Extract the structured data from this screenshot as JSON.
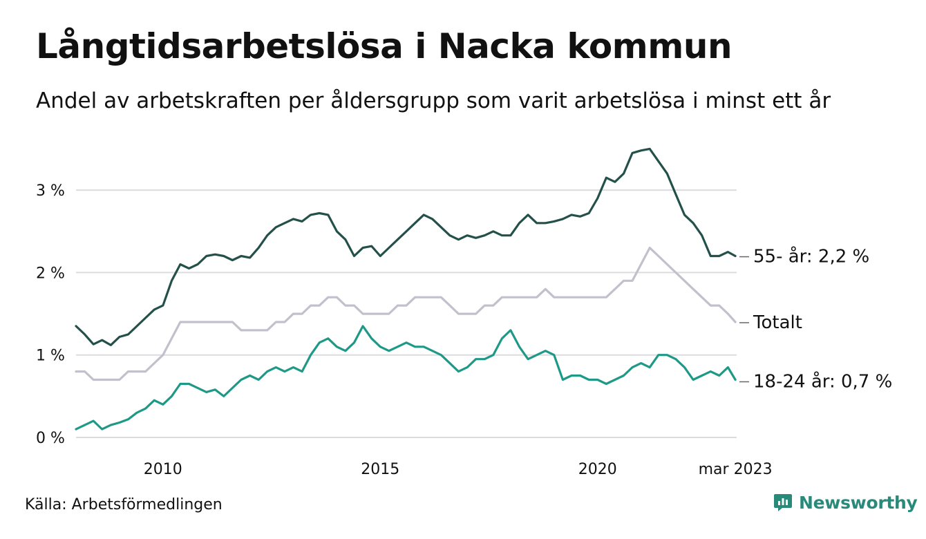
{
  "title": "Långtidsarbetslösa i Nacka kommun",
  "subtitle": "Andel av arbetskraften per åldersgrupp som varit arbetslösa i minst ett år",
  "source": "Källa: Arbetsförmedlingen",
  "brand": {
    "name": "Newsworthy",
    "icon": "newsworthy-logo-icon",
    "color": "#2a8a7a"
  },
  "chart_data": {
    "type": "line",
    "title": "Långtidsarbetslösa i Nacka kommun",
    "xlabel": "",
    "ylabel": "",
    "ylim": [
      0,
      3.6
    ],
    "xlim": [
      2008.0,
      2023.2
    ],
    "yticks": [
      0,
      1,
      2,
      3
    ],
    "ytick_labels": [
      "0 %",
      "1 %",
      "2 %",
      "3 %"
    ],
    "xticks": [
      2010,
      2015,
      2020,
      2023.17
    ],
    "xtick_labels": [
      "2010",
      "2015",
      "2020",
      "mar 2023"
    ],
    "grid": true,
    "legend": "inline end labels",
    "series": [
      {
        "name": "55- år",
        "end_label": "55- år: 2,2 %",
        "color": "#24504a",
        "x": [
          2008.0,
          2008.2,
          2008.4,
          2008.6,
          2008.8,
          2009.0,
          2009.2,
          2009.4,
          2009.6,
          2009.8,
          2010.0,
          2010.2,
          2010.4,
          2010.6,
          2010.8,
          2011.0,
          2011.2,
          2011.4,
          2011.6,
          2011.8,
          2012.0,
          2012.2,
          2012.4,
          2012.6,
          2012.8,
          2013.0,
          2013.2,
          2013.4,
          2013.6,
          2013.8,
          2014.0,
          2014.2,
          2014.4,
          2014.6,
          2014.8,
          2015.0,
          2015.2,
          2015.4,
          2015.6,
          2015.8,
          2016.0,
          2016.2,
          2016.4,
          2016.6,
          2016.8,
          2017.0,
          2017.2,
          2017.4,
          2017.6,
          2017.8,
          2018.0,
          2018.2,
          2018.4,
          2018.6,
          2018.8,
          2019.0,
          2019.2,
          2019.4,
          2019.6,
          2019.8,
          2020.0,
          2020.2,
          2020.4,
          2020.6,
          2020.8,
          2021.0,
          2021.2,
          2021.4,
          2021.6,
          2021.8,
          2022.0,
          2022.2,
          2022.4,
          2022.6,
          2022.8,
          2023.0,
          2023.17
        ],
        "values": [
          1.35,
          1.25,
          1.13,
          1.18,
          1.12,
          1.22,
          1.25,
          1.35,
          1.45,
          1.55,
          1.6,
          1.9,
          2.1,
          2.05,
          2.1,
          2.2,
          2.22,
          2.2,
          2.15,
          2.2,
          2.18,
          2.3,
          2.45,
          2.55,
          2.6,
          2.65,
          2.62,
          2.7,
          2.72,
          2.7,
          2.5,
          2.4,
          2.2,
          2.3,
          2.32,
          2.2,
          2.3,
          2.4,
          2.5,
          2.6,
          2.7,
          2.65,
          2.55,
          2.45,
          2.4,
          2.45,
          2.42,
          2.45,
          2.5,
          2.45,
          2.45,
          2.6,
          2.7,
          2.6,
          2.6,
          2.62,
          2.65,
          2.7,
          2.68,
          2.72,
          2.9,
          3.15,
          3.1,
          3.2,
          3.45,
          3.48,
          3.5,
          3.35,
          3.2,
          2.95,
          2.7,
          2.6,
          2.45,
          2.2,
          2.2,
          2.25,
          2.2
        ]
      },
      {
        "name": "Totalt",
        "end_label": "Totalt",
        "color": "#c2c0cc",
        "x": [
          2008.0,
          2008.2,
          2008.4,
          2008.6,
          2008.8,
          2009.0,
          2009.2,
          2009.4,
          2009.6,
          2009.8,
          2010.0,
          2010.2,
          2010.4,
          2010.6,
          2010.8,
          2011.0,
          2011.2,
          2011.4,
          2011.6,
          2011.8,
          2012.0,
          2012.2,
          2012.4,
          2012.6,
          2012.8,
          2013.0,
          2013.2,
          2013.4,
          2013.6,
          2013.8,
          2014.0,
          2014.2,
          2014.4,
          2014.6,
          2014.8,
          2015.0,
          2015.2,
          2015.4,
          2015.6,
          2015.8,
          2016.0,
          2016.2,
          2016.4,
          2016.6,
          2016.8,
          2017.0,
          2017.2,
          2017.4,
          2017.6,
          2017.8,
          2018.0,
          2018.2,
          2018.4,
          2018.6,
          2018.8,
          2019.0,
          2019.2,
          2019.4,
          2019.6,
          2019.8,
          2020.0,
          2020.2,
          2020.4,
          2020.6,
          2020.8,
          2021.0,
          2021.2,
          2021.4,
          2021.6,
          2021.8,
          2022.0,
          2022.2,
          2022.4,
          2022.6,
          2022.8,
          2023.0,
          2023.17
        ],
        "values": [
          0.8,
          0.8,
          0.7,
          0.7,
          0.7,
          0.7,
          0.8,
          0.8,
          0.8,
          0.9,
          1.0,
          1.2,
          1.4,
          1.4,
          1.4,
          1.4,
          1.4,
          1.4,
          1.4,
          1.3,
          1.3,
          1.3,
          1.3,
          1.4,
          1.4,
          1.5,
          1.5,
          1.6,
          1.6,
          1.7,
          1.7,
          1.6,
          1.6,
          1.5,
          1.5,
          1.5,
          1.5,
          1.6,
          1.6,
          1.7,
          1.7,
          1.7,
          1.7,
          1.6,
          1.5,
          1.5,
          1.5,
          1.6,
          1.6,
          1.7,
          1.7,
          1.7,
          1.7,
          1.7,
          1.8,
          1.7,
          1.7,
          1.7,
          1.7,
          1.7,
          1.7,
          1.7,
          1.8,
          1.9,
          1.9,
          2.1,
          2.3,
          2.2,
          2.1,
          2.0,
          1.9,
          1.8,
          1.7,
          1.6,
          1.6,
          1.5,
          1.4
        ]
      },
      {
        "name": "18-24 år",
        "end_label": "18-24 år: 0,7 %",
        "color": "#1f9987",
        "x": [
          2008.0,
          2008.2,
          2008.4,
          2008.6,
          2008.8,
          2009.0,
          2009.2,
          2009.4,
          2009.6,
          2009.8,
          2010.0,
          2010.2,
          2010.4,
          2010.6,
          2010.8,
          2011.0,
          2011.2,
          2011.4,
          2011.6,
          2011.8,
          2012.0,
          2012.2,
          2012.4,
          2012.6,
          2012.8,
          2013.0,
          2013.2,
          2013.4,
          2013.6,
          2013.8,
          2014.0,
          2014.2,
          2014.4,
          2014.6,
          2014.8,
          2015.0,
          2015.2,
          2015.4,
          2015.6,
          2015.8,
          2016.0,
          2016.2,
          2016.4,
          2016.6,
          2016.8,
          2017.0,
          2017.2,
          2017.4,
          2017.6,
          2017.8,
          2018.0,
          2018.2,
          2018.4,
          2018.6,
          2018.8,
          2019.0,
          2019.2,
          2019.4,
          2019.6,
          2019.8,
          2020.0,
          2020.2,
          2020.4,
          2020.6,
          2020.8,
          2021.0,
          2021.2,
          2021.4,
          2021.6,
          2021.8,
          2022.0,
          2022.2,
          2022.4,
          2022.6,
          2022.8,
          2023.0,
          2023.17
        ],
        "values": [
          0.1,
          0.15,
          0.2,
          0.1,
          0.15,
          0.18,
          0.22,
          0.3,
          0.35,
          0.45,
          0.4,
          0.5,
          0.65,
          0.65,
          0.6,
          0.55,
          0.58,
          0.5,
          0.6,
          0.7,
          0.75,
          0.7,
          0.8,
          0.85,
          0.8,
          0.85,
          0.8,
          1.0,
          1.15,
          1.2,
          1.1,
          1.05,
          1.15,
          1.35,
          1.2,
          1.1,
          1.05,
          1.1,
          1.15,
          1.1,
          1.1,
          1.05,
          1.0,
          0.9,
          0.8,
          0.85,
          0.95,
          0.95,
          1.0,
          1.2,
          1.3,
          1.1,
          0.95,
          1.0,
          1.05,
          1.0,
          0.7,
          0.75,
          0.75,
          0.7,
          0.7,
          0.65,
          0.7,
          0.75,
          0.85,
          0.9,
          0.85,
          1.0,
          1.0,
          0.95,
          0.85,
          0.7,
          0.75,
          0.8,
          0.75,
          0.85,
          0.7
        ]
      }
    ]
  }
}
